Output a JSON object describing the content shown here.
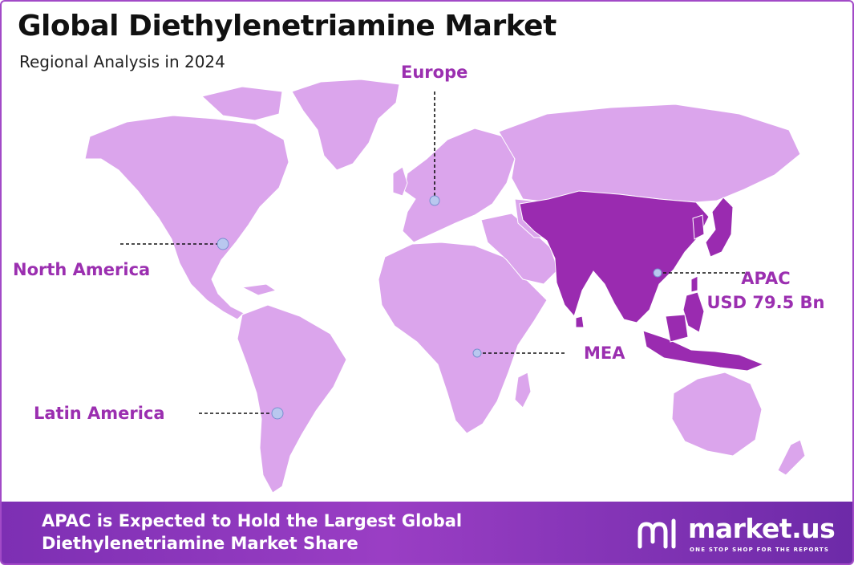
{
  "header": {
    "title": "Global Diethylenetriamine Market",
    "subtitle": "Regional Analysis in 2024"
  },
  "regions": {
    "north_america": "North America",
    "europe": "Europe",
    "latin_america": "Latin America",
    "mea": "MEA",
    "apac": "APAC",
    "apac_value": "USD 79.5 Bn"
  },
  "colors": {
    "land": "#dba5ec",
    "apac_highlight": "#9a2bb0",
    "accent_text": "#9b2fb0",
    "marker": "#b9c8ef",
    "footer": "#8a36bb"
  },
  "footer": {
    "line1": "APAC is Expected to Hold the Largest Global",
    "line2": "Diethylenetriamine  Market Share"
  },
  "brand": {
    "name": "market.us",
    "tagline": "ONE STOP SHOP FOR THE REPORTS"
  }
}
